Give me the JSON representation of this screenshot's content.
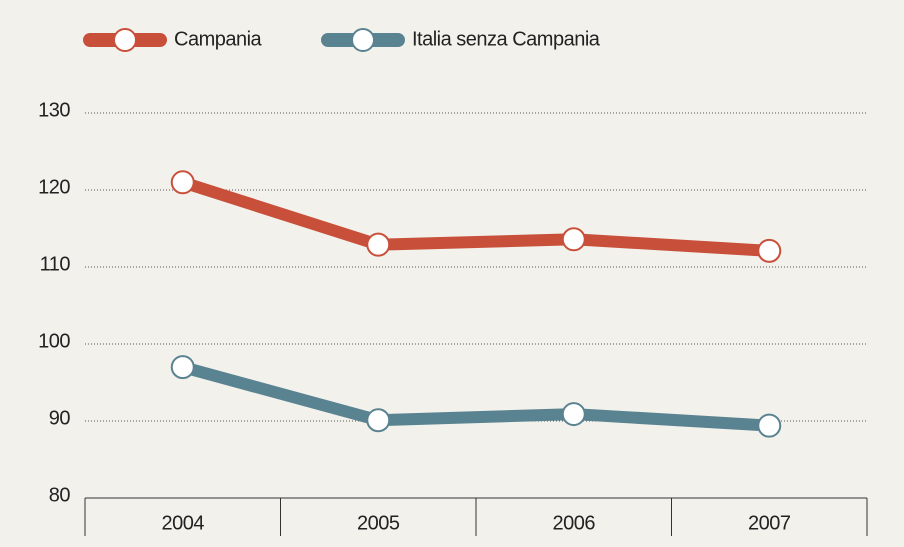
{
  "chart_data": {
    "type": "line",
    "categories": [
      "2004",
      "2005",
      "2006",
      "2007"
    ],
    "series": [
      {
        "name": "Campania",
        "color": "#c8503a",
        "values": [
          121,
          112.9,
          113.6,
          112.1
        ]
      },
      {
        "name": "Italia senza Campania",
        "color": "#5a8391",
        "values": [
          97,
          90.1,
          90.9,
          89.4
        ]
      }
    ],
    "ylim": [
      80,
      130
    ],
    "yticks": [
      80,
      90,
      100,
      110,
      120,
      130
    ],
    "grid": true,
    "legend": "top"
  }
}
